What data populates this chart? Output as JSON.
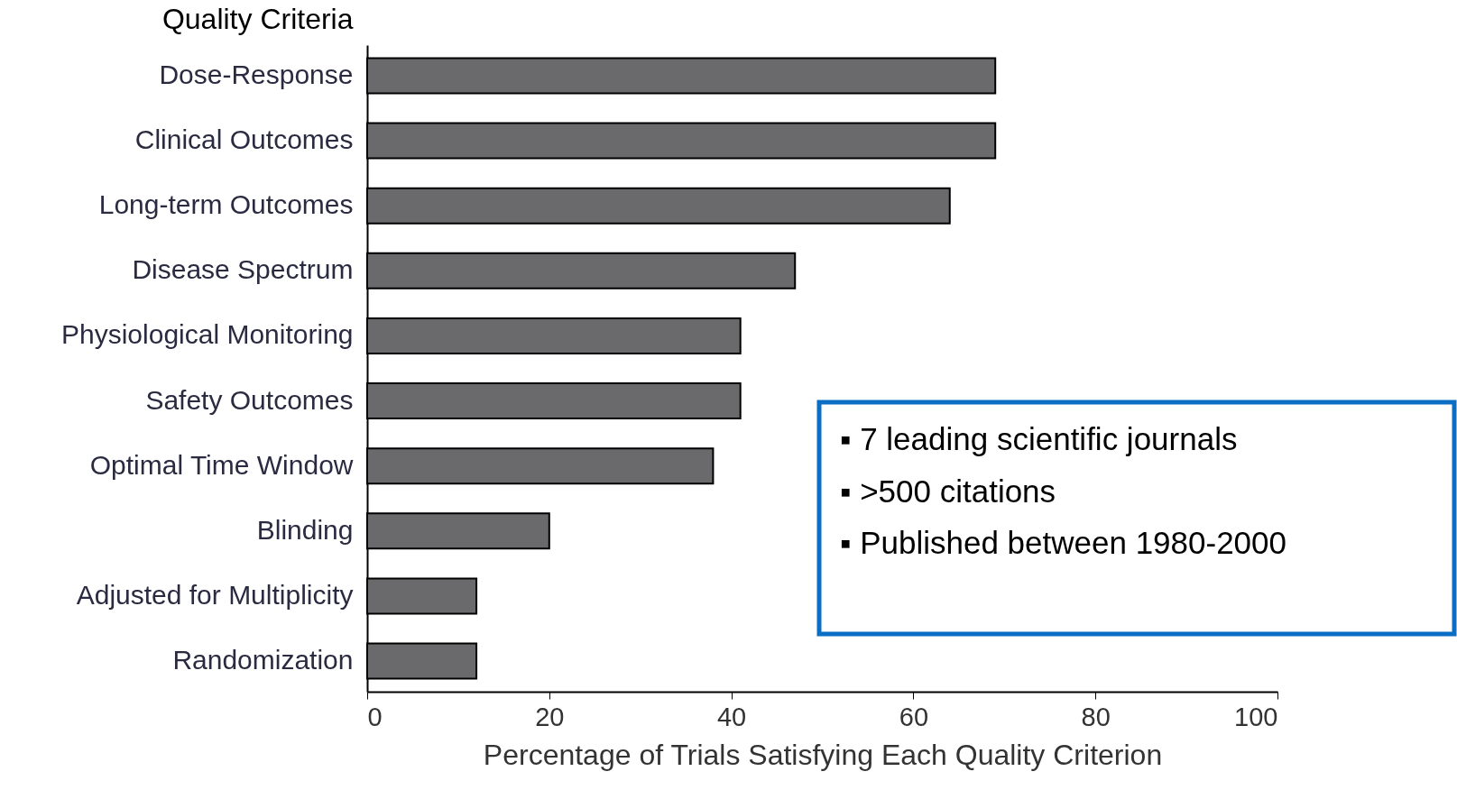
{
  "chart_data": {
    "type": "bar",
    "orientation": "horizontal",
    "ylabel": "Quality Criteria",
    "xlabel": "Percentage of Trials Satisfying Each Quality Criterion",
    "categories": [
      "Dose-Response",
      "Clinical Outcomes",
      "Long-term Outcomes",
      "Disease Spectrum",
      "Physiological Monitoring",
      "Safety Outcomes",
      "Optimal Time Window",
      "Blinding",
      "Adjusted for Multiplicity",
      "Randomization"
    ],
    "values": [
      69,
      69,
      64,
      47,
      41,
      41,
      38,
      20,
      12,
      12
    ],
    "color": "#6a6a6d",
    "xlim": [
      0,
      100
    ],
    "xticks": [
      0,
      20,
      40,
      60,
      80,
      100
    ],
    "grid": false,
    "annotations": [
      "▪   7 leading scientific journals",
      "▪   >500 citations",
      "▪   Published between 1980-2000"
    ]
  }
}
